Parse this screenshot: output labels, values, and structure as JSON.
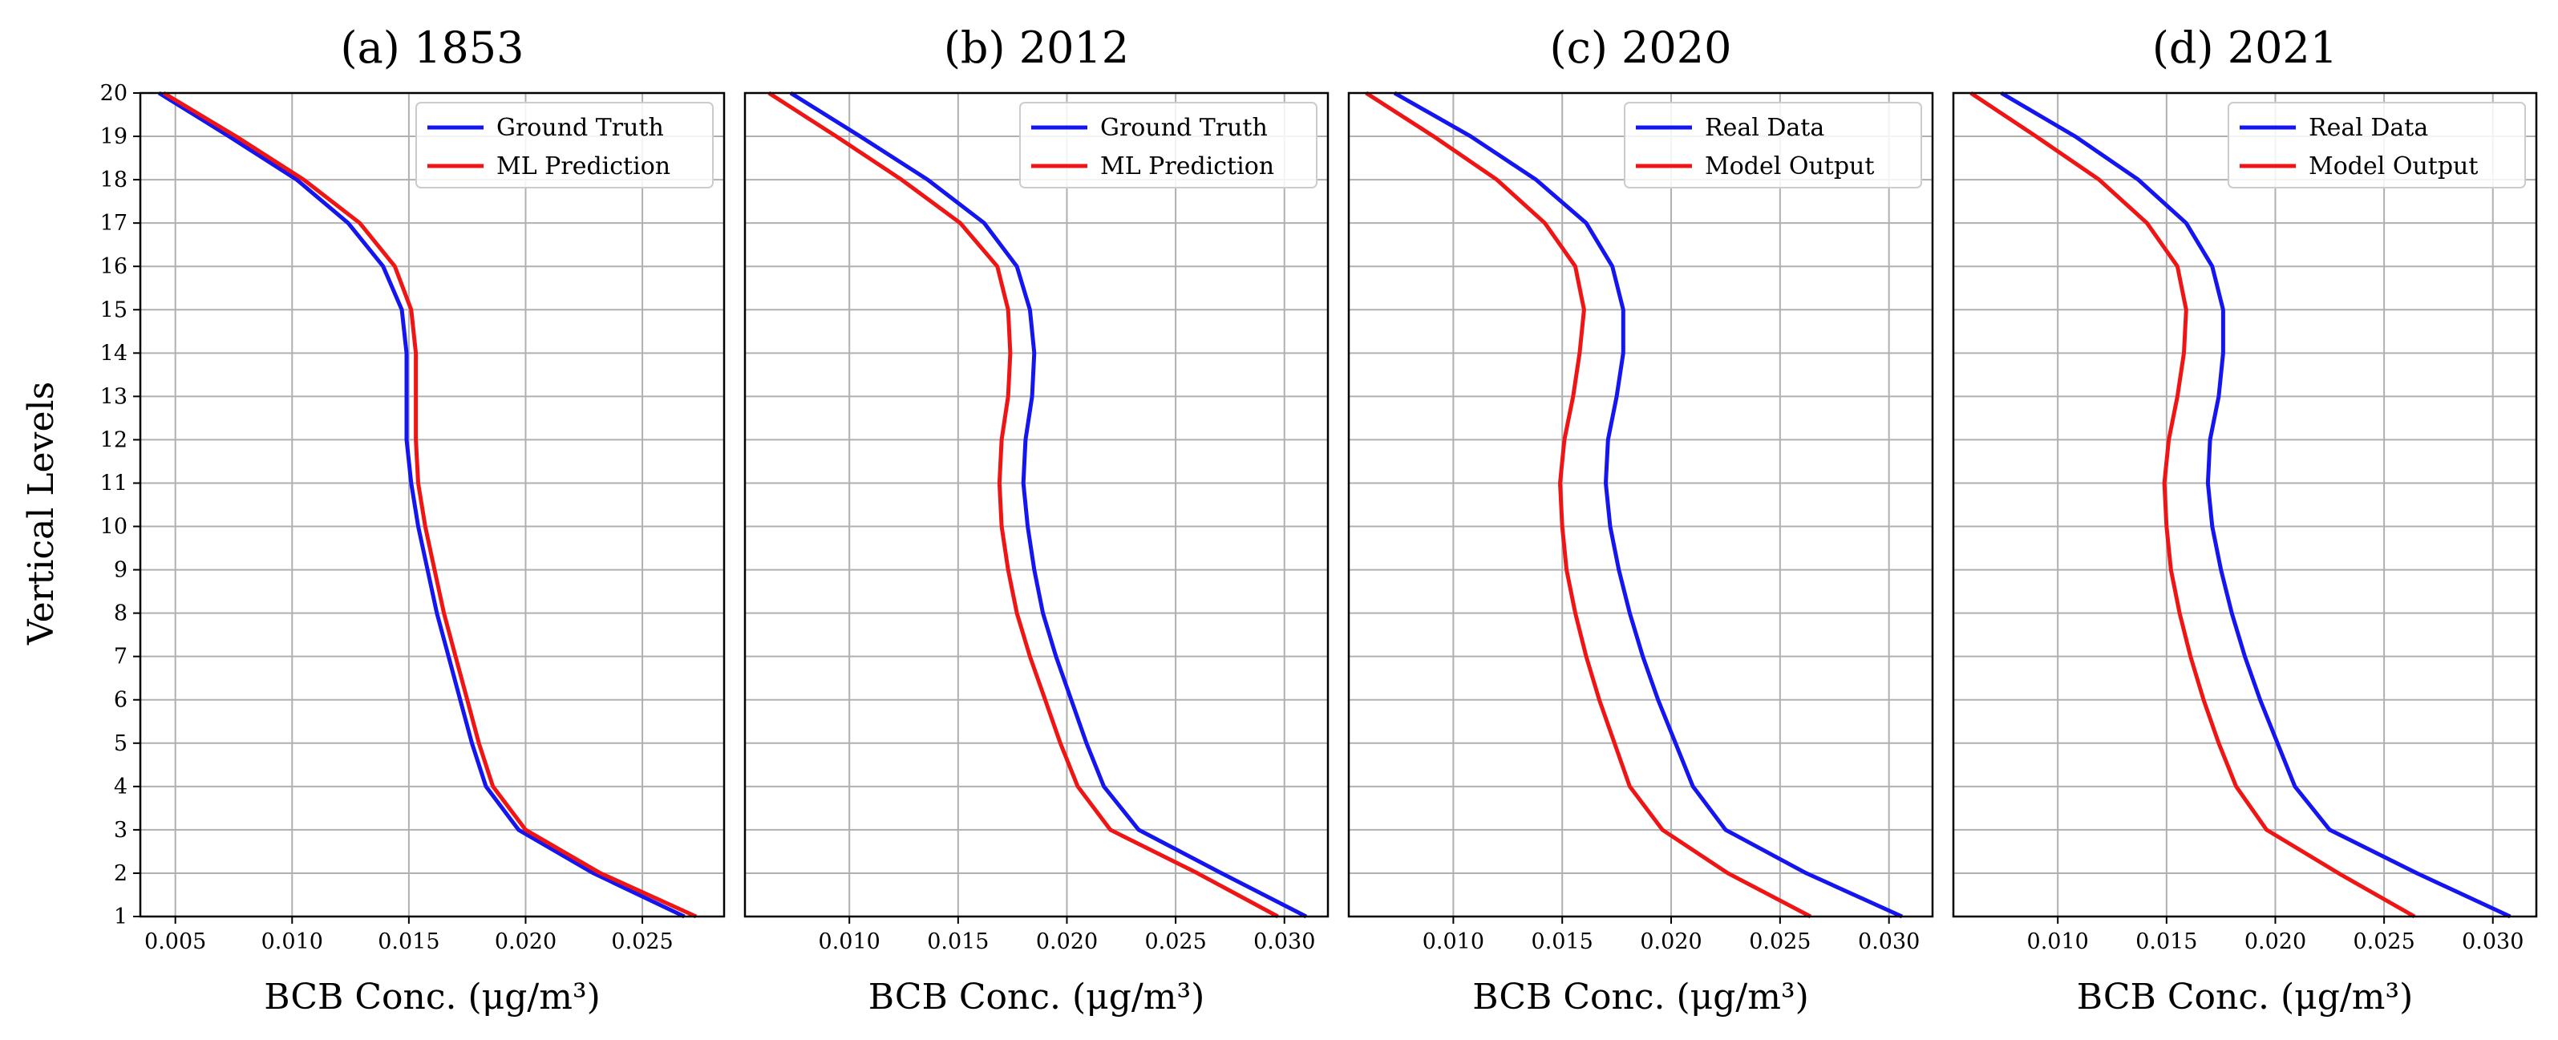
{
  "y_axis_label": "Vertical Levels",
  "chart_data": [
    {
      "type": "line",
      "title": "(a) 1853",
      "xlabel": "BCB Conc. (μg/m³)",
      "ylabel": "Vertical Levels",
      "xlim": [
        0.0035,
        0.0285
      ],
      "ylim": [
        1,
        20
      ],
      "xticks": [
        "0.005",
        "0.010",
        "0.015",
        "0.020",
        "0.025"
      ],
      "xtick_values": [
        0.005,
        0.01,
        0.015,
        0.02,
        0.025
      ],
      "yticks": [
        1,
        2,
        3,
        4,
        5,
        6,
        7,
        8,
        9,
        10,
        11,
        12,
        13,
        14,
        15,
        16,
        17,
        18,
        19,
        20
      ],
      "grid": true,
      "legend_position": "top-right",
      "y": [
        1,
        2,
        3,
        4,
        5,
        6,
        7,
        8,
        9,
        10,
        11,
        12,
        13,
        14,
        15,
        16,
        17,
        18,
        19,
        20
      ],
      "series": [
        {
          "name": "Ground Truth",
          "color": "#1515f0",
          "values": [
            0.0268,
            0.0229,
            0.0197,
            0.0183,
            0.0177,
            0.0172,
            0.0167,
            0.0162,
            0.0158,
            0.0154,
            0.0151,
            0.0149,
            0.0149,
            0.0149,
            0.0147,
            0.0139,
            0.0124,
            0.0102,
            0.0073,
            0.0043
          ]
        },
        {
          "name": "ML Prediction",
          "color": "#f01515",
          "values": [
            0.0273,
            0.0232,
            0.02,
            0.0186,
            0.018,
            0.0175,
            0.017,
            0.0165,
            0.0161,
            0.0157,
            0.0154,
            0.0153,
            0.0153,
            0.0153,
            0.0151,
            0.0144,
            0.0129,
            0.0105,
            0.0076,
            0.0045
          ]
        }
      ]
    },
    {
      "type": "line",
      "title": "(b) 2012",
      "xlabel": "BCB Conc. (μg/m³)",
      "xlim": [
        0.0052,
        0.032
      ],
      "ylim": [
        1,
        20
      ],
      "xticks": [
        "0.010",
        "0.015",
        "0.020",
        "0.025",
        "0.030"
      ],
      "xtick_values": [
        0.01,
        0.015,
        0.02,
        0.025,
        0.03
      ],
      "grid": true,
      "legend_position": "top-right",
      "y": [
        1,
        2,
        3,
        4,
        5,
        6,
        7,
        8,
        9,
        10,
        11,
        12,
        13,
        14,
        15,
        16,
        17,
        18,
        19,
        20
      ],
      "series": [
        {
          "name": "Ground Truth",
          "color": "#1515f0",
          "values": [
            0.031,
            0.0271,
            0.0233,
            0.0217,
            0.0209,
            0.0202,
            0.0195,
            0.0189,
            0.0185,
            0.0182,
            0.018,
            0.0181,
            0.0184,
            0.0185,
            0.0183,
            0.0177,
            0.0162,
            0.0136,
            0.0105,
            0.0073
          ]
        },
        {
          "name": "ML Prediction",
          "color": "#f01515",
          "values": [
            0.0297,
            0.026,
            0.022,
            0.0205,
            0.0197,
            0.019,
            0.0183,
            0.0177,
            0.0173,
            0.017,
            0.0169,
            0.017,
            0.0173,
            0.0174,
            0.0173,
            0.0168,
            0.0151,
            0.0124,
            0.0094,
            0.0063
          ]
        }
      ]
    },
    {
      "type": "line",
      "title": "(c) 2020",
      "xlabel": "BCB Conc. (μg/m³)",
      "xlim": [
        0.0052,
        0.032
      ],
      "ylim": [
        1,
        20
      ],
      "xticks": [
        "0.010",
        "0.015",
        "0.020",
        "0.025",
        "0.030"
      ],
      "xtick_values": [
        0.01,
        0.015,
        0.02,
        0.025,
        0.03
      ],
      "grid": true,
      "legend_position": "top-right",
      "y": [
        1,
        2,
        3,
        4,
        5,
        6,
        7,
        8,
        9,
        10,
        11,
        12,
        13,
        14,
        15,
        16,
        17,
        18,
        19,
        20
      ],
      "series": [
        {
          "name": "Real Data",
          "color": "#1515f0",
          "values": [
            0.0306,
            0.0262,
            0.0225,
            0.021,
            0.0202,
            0.0194,
            0.0187,
            0.0181,
            0.0176,
            0.0172,
            0.017,
            0.0171,
            0.0175,
            0.0178,
            0.0178,
            0.0173,
            0.0161,
            0.0138,
            0.0108,
            0.0073
          ]
        },
        {
          "name": "Model Output",
          "color": "#f01515",
          "values": [
            0.0264,
            0.0226,
            0.0196,
            0.0181,
            0.0174,
            0.0167,
            0.0161,
            0.0156,
            0.0152,
            0.015,
            0.0149,
            0.0151,
            0.0155,
            0.0158,
            0.016,
            0.0156,
            0.0142,
            0.012,
            0.0091,
            0.006
          ]
        }
      ]
    },
    {
      "type": "line",
      "title": "(d) 2021",
      "xlabel": "BCB Conc. (μg/m³)",
      "xlim": [
        0.0052,
        0.032
      ],
      "ylim": [
        1,
        20
      ],
      "xticks": [
        "0.010",
        "0.015",
        "0.020",
        "0.025",
        "0.030"
      ],
      "xtick_values": [
        0.01,
        0.015,
        0.02,
        0.025,
        0.03
      ],
      "grid": true,
      "legend_position": "top-right",
      "y": [
        1,
        2,
        3,
        4,
        5,
        6,
        7,
        8,
        9,
        10,
        11,
        12,
        13,
        14,
        15,
        16,
        17,
        18,
        19,
        20
      ],
      "series": [
        {
          "name": "Real Data",
          "color": "#1515f0",
          "values": [
            0.0308,
            0.0265,
            0.0225,
            0.0209,
            0.0201,
            0.0193,
            0.0186,
            0.018,
            0.0175,
            0.0171,
            0.0169,
            0.017,
            0.0174,
            0.0176,
            0.0176,
            0.0171,
            0.0159,
            0.0137,
            0.0108,
            0.0074
          ]
        },
        {
          "name": "Model Output",
          "color": "#f01515",
          "values": [
            0.0264,
            0.0229,
            0.0196,
            0.0182,
            0.0174,
            0.0167,
            0.0161,
            0.0156,
            0.0152,
            0.015,
            0.0149,
            0.0151,
            0.0155,
            0.0158,
            0.0159,
            0.0155,
            0.0141,
            0.0119,
            0.009,
            0.006
          ]
        }
      ]
    }
  ]
}
